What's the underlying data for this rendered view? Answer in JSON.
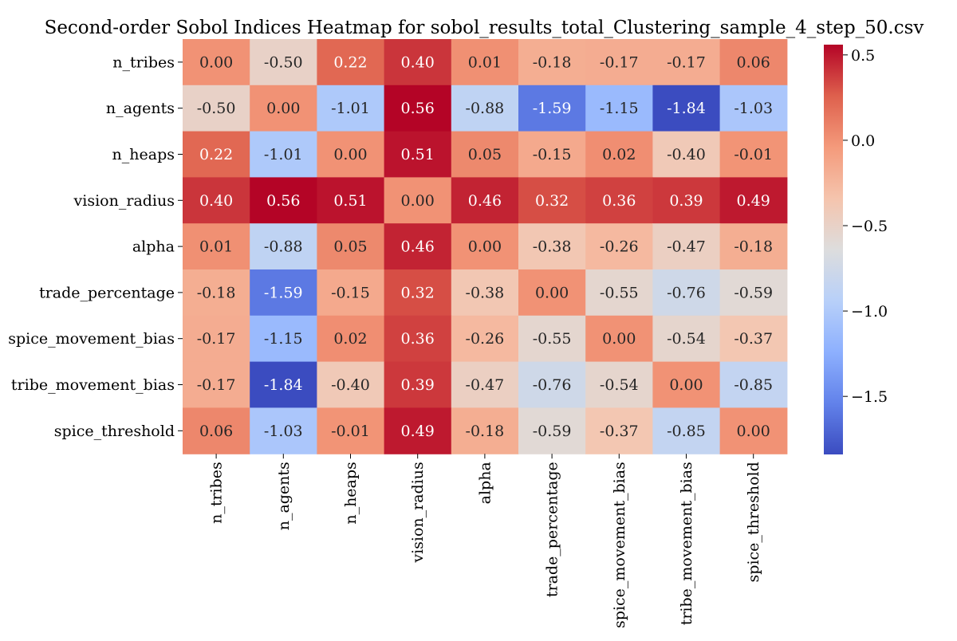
{
  "chart_data": {
    "type": "heatmap",
    "title": "Second-order Sobol Indices Heatmap for sobol_results_total_Clustering_sample_4_step_50.csv",
    "row_labels": [
      "n_tribes",
      "n_agents",
      "n_heaps",
      "vision_radius",
      "alpha",
      "trade_percentage",
      "spice_movement_bias",
      "tribe_movement_bias",
      "spice_threshold"
    ],
    "col_labels": [
      "n_tribes",
      "n_agents",
      "n_heaps",
      "vision_radius",
      "alpha",
      "trade_percentage",
      "spice_movement_bias",
      "tribe_movement_bias",
      "spice_threshold"
    ],
    "values": [
      [
        0.0,
        -0.5,
        0.22,
        0.4,
        0.01,
        -0.18,
        -0.17,
        -0.17,
        0.06
      ],
      [
        -0.5,
        0.0,
        -1.01,
        0.56,
        -0.88,
        -1.59,
        -1.15,
        -1.84,
        -1.03
      ],
      [
        0.22,
        -1.01,
        0.0,
        0.51,
        0.05,
        -0.15,
        0.02,
        -0.4,
        -0.01
      ],
      [
        0.4,
        0.56,
        0.51,
        0.0,
        0.46,
        0.32,
        0.36,
        0.39,
        0.49
      ],
      [
        0.01,
        -0.88,
        0.05,
        0.46,
        0.0,
        -0.38,
        -0.26,
        -0.47,
        -0.18
      ],
      [
        -0.18,
        -1.59,
        -0.15,
        0.32,
        -0.38,
        0.0,
        -0.55,
        -0.76,
        -0.59
      ],
      [
        -0.17,
        -1.15,
        0.02,
        0.36,
        -0.26,
        -0.55,
        0.0,
        -0.54,
        -0.37
      ],
      [
        -0.17,
        -1.84,
        -0.4,
        0.39,
        -0.47,
        -0.76,
        -0.54,
        0.0,
        -0.85
      ],
      [
        0.06,
        -1.03,
        -0.01,
        0.49,
        -0.18,
        -0.59,
        -0.37,
        -0.85,
        0.0
      ]
    ],
    "colormap": "coolwarm",
    "vmin": -1.84,
    "vmax": 0.56,
    "colorbar_ticks": [
      0.5,
      0.0,
      -0.5,
      -1.0,
      -1.5
    ],
    "colorbar_tick_labels": [
      "0.5",
      "0.0",
      "−0.5",
      "−1.0",
      "−1.5"
    ],
    "annotation_format": "2dp",
    "xlabel": "",
    "ylabel": ""
  }
}
